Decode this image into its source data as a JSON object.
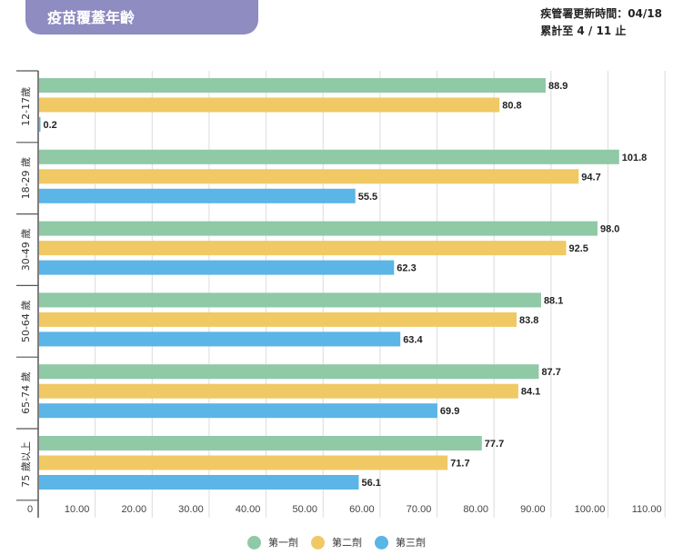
{
  "header": {
    "title": "疫苗覆蓋年齡",
    "update_line1": "疾管署更新時間：04/18",
    "update_line2": "累計至 4 / 11 止"
  },
  "chart_data": {
    "type": "bar",
    "orientation": "horizontal",
    "categories": [
      "12-17歲",
      "18-29 歲",
      "30-49 歲",
      "50-64 歲",
      "65-74 歲",
      "75 歲以上"
    ],
    "series": [
      {
        "name": "第一劑",
        "color": "#8fc9a6",
        "values": [
          88.9,
          101.8,
          98.0,
          88.1,
          87.7,
          77.7
        ]
      },
      {
        "name": "第二劑",
        "color": "#f0c965",
        "values": [
          80.8,
          94.7,
          92.5,
          83.8,
          84.1,
          71.7
        ]
      },
      {
        "name": "第三劑",
        "color": "#5bb5e6",
        "values": [
          0.2,
          55.5,
          62.3,
          63.4,
          69.9,
          56.1
        ]
      }
    ],
    "xlim": [
      0,
      115
    ],
    "xticks": [
      "0",
      "10.00",
      "20.00",
      "30.00",
      "40.00",
      "50.00",
      "60.00",
      "70.00",
      "80.00",
      "90.00",
      "100.00",
      "110.00"
    ],
    "grid": true,
    "legend": "bottom"
  }
}
